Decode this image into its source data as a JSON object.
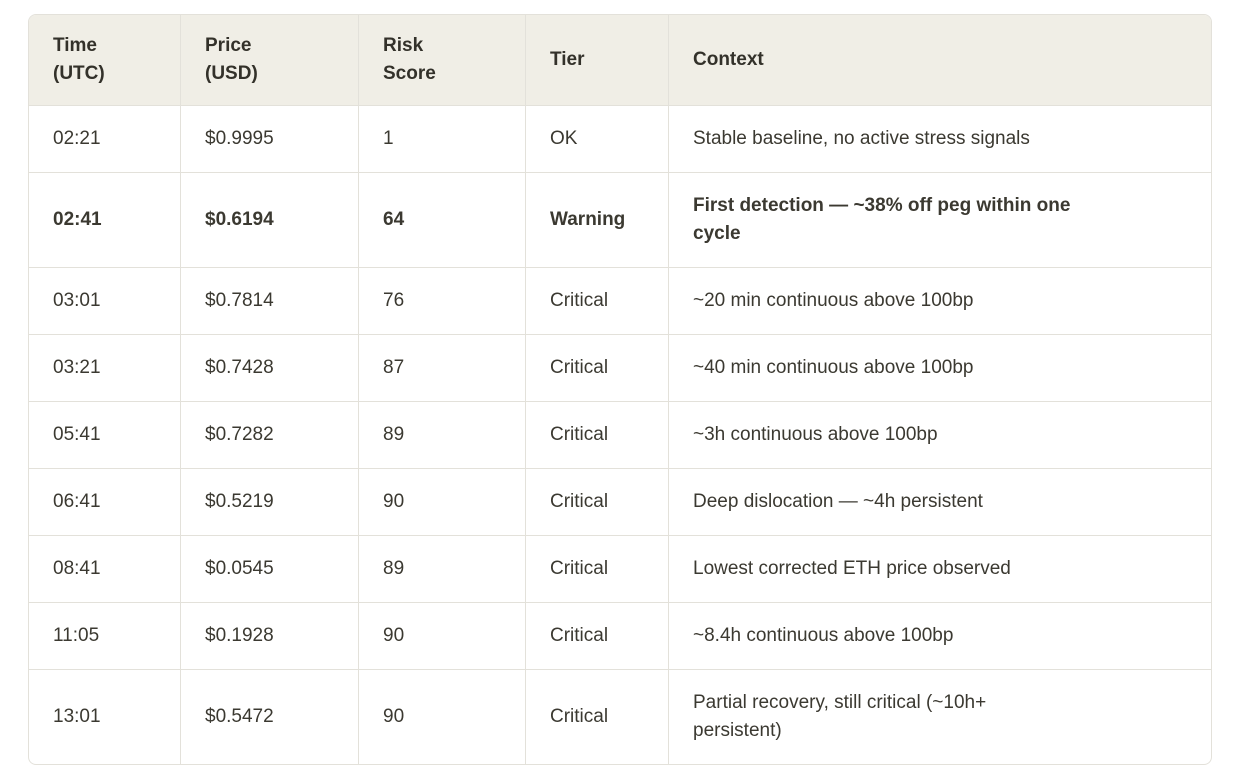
{
  "colors": {
    "page_bg": "#ffffff",
    "header_bg": "#f0eee6",
    "border": "#e3e1da",
    "text": "#3b3931",
    "header_text": "#33312a"
  },
  "table": {
    "columns": [
      {
        "key": "time",
        "label": "Time\n(UTC)"
      },
      {
        "key": "price",
        "label": "Price\n(USD)"
      },
      {
        "key": "risk",
        "label": "Risk\nScore"
      },
      {
        "key": "tier",
        "label": "Tier"
      },
      {
        "key": "context",
        "label": "Context"
      }
    ],
    "rows": [
      {
        "time": "02:21",
        "price": "$0.9995",
        "risk": "1",
        "tier": "OK",
        "bold": false,
        "context": "Stable baseline, no active stress signals"
      },
      {
        "time": "02:41",
        "price": "$0.6194",
        "risk": "64",
        "tier": "Warning",
        "bold": true,
        "context": "First detection — ~38% off peg within one\ncycle"
      },
      {
        "time": "03:01",
        "price": "$0.7814",
        "risk": "76",
        "tier": "Critical",
        "bold": false,
        "context": "~20 min continuous above 100bp"
      },
      {
        "time": "03:21",
        "price": "$0.7428",
        "risk": "87",
        "tier": "Critical",
        "bold": false,
        "context": "~40 min continuous above 100bp"
      },
      {
        "time": "05:41",
        "price": "$0.7282",
        "risk": "89",
        "tier": "Critical",
        "bold": false,
        "context": "~3h continuous above 100bp"
      },
      {
        "time": "06:41",
        "price": "$0.5219",
        "risk": "90",
        "tier": "Critical",
        "bold": false,
        "context": "Deep dislocation — ~4h persistent"
      },
      {
        "time": "08:41",
        "price": "$0.0545",
        "risk": "89",
        "tier": "Critical",
        "bold": false,
        "context": "Lowest corrected ETH price observed"
      },
      {
        "time": "11:05",
        "price": "$0.1928",
        "risk": "90",
        "tier": "Critical",
        "bold": false,
        "context": "~8.4h continuous above 100bp"
      },
      {
        "time": "13:01",
        "price": "$0.5472",
        "risk": "90",
        "tier": "Critical",
        "bold": false,
        "context": "Partial recovery, still critical (~10h+\npersistent)"
      }
    ]
  }
}
